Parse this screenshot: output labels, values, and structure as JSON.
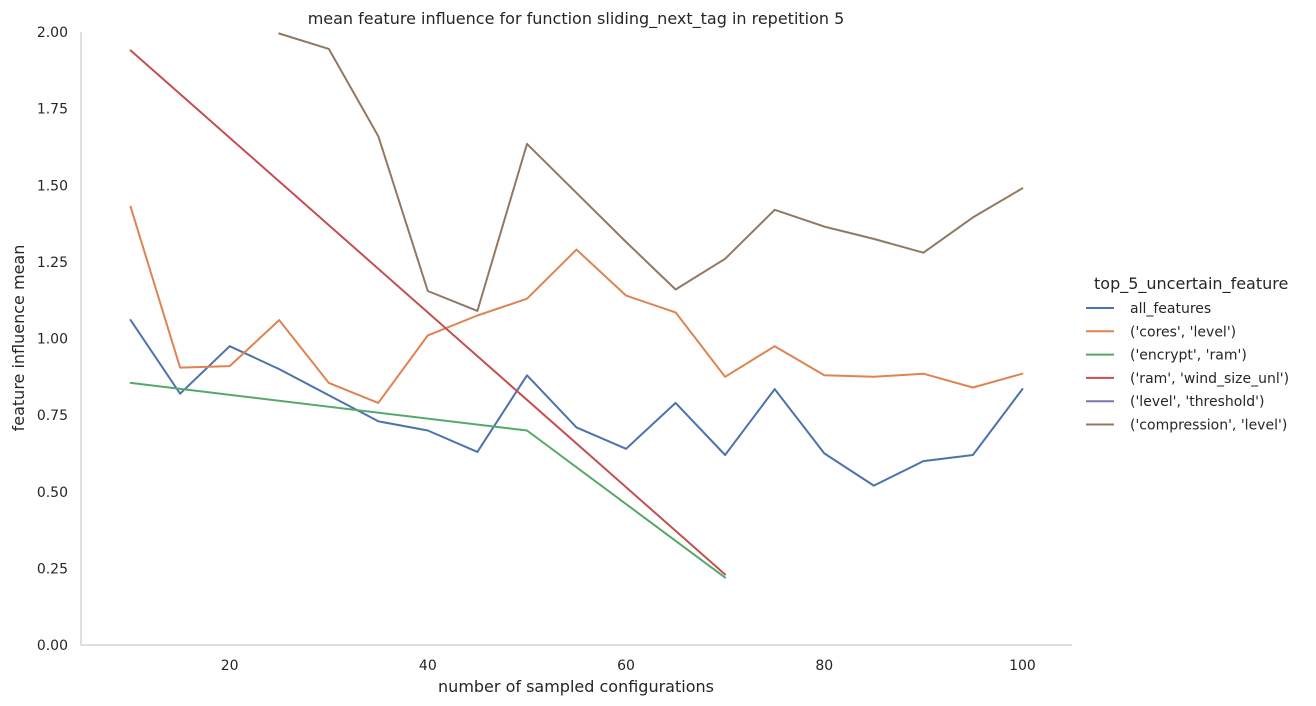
{
  "chart_data": {
    "type": "line",
    "title": "mean feature influence for function sliding_next_tag in repetition 5",
    "xlabel": "number of sampled configurations",
    "ylabel": "feature influence mean",
    "xlim": [
      5,
      105
    ],
    "ylim": [
      0,
      2.0
    ],
    "xticks": [
      20,
      40,
      60,
      80,
      100
    ],
    "yticks": [
      0.0,
      0.25,
      0.5,
      0.75,
      1.0,
      1.25,
      1.5,
      1.75,
      2.0
    ],
    "xtick_labels": [
      "20",
      "40",
      "60",
      "80",
      "100"
    ],
    "ytick_labels": [
      "0.00",
      "0.25",
      "0.50",
      "0.75",
      "1.00",
      "1.25",
      "1.50",
      "1.75",
      "2.00"
    ],
    "grid": false,
    "legend": {
      "title": "top_5_uncertain_feature",
      "placement": "outside-right"
    },
    "series": [
      {
        "name": "all_features",
        "color": "#4c72b0",
        "x": [
          10,
          15,
          20,
          25,
          30,
          35,
          40,
          45,
          50,
          55,
          60,
          65,
          70,
          75,
          80,
          85,
          90,
          95,
          100
        ],
        "y": [
          1.06,
          0.82,
          0.975,
          0.9,
          0.815,
          0.73,
          0.7,
          0.63,
          0.88,
          0.71,
          0.64,
          0.79,
          0.62,
          0.835,
          0.625,
          0.52,
          0.6,
          0.62,
          0.835
        ]
      },
      {
        "name": "('cores', 'level')",
        "color": "#dd8452",
        "x": [
          10,
          15,
          20,
          25,
          30,
          35,
          40,
          45,
          50,
          55,
          60,
          65,
          70,
          75,
          80,
          85,
          90,
          95,
          100
        ],
        "y": [
          1.43,
          0.905,
          0.91,
          1.06,
          0.855,
          0.79,
          1.01,
          1.075,
          1.13,
          1.29,
          1.14,
          1.085,
          0.875,
          0.975,
          0.88,
          0.875,
          0.885,
          0.84,
          0.885
        ]
      },
      {
        "name": "('encrypt', 'ram')",
        "color": "#55a868",
        "x": [
          10,
          50,
          70
        ],
        "y": [
          0.855,
          0.7,
          0.22
        ]
      },
      {
        "name": "('ram', 'wind_size_unl')",
        "color": "#c44e52",
        "x": [
          10,
          70
        ],
        "y": [
          1.94,
          0.23
        ]
      },
      {
        "name": "('level', 'threshold')",
        "color": "#8172b3",
        "x": [],
        "y": []
      },
      {
        "name": "('compression', 'level')",
        "color": "#937860",
        "x": [
          25,
          30,
          35,
          40,
          45,
          50,
          55,
          60,
          65,
          70,
          75,
          80,
          85,
          90,
          95,
          100
        ],
        "y": [
          1.995,
          1.945,
          1.66,
          1.155,
          1.09,
          1.635,
          1.475,
          1.315,
          1.16,
          1.26,
          1.42,
          1.365,
          1.325,
          1.28,
          1.395,
          1.49
        ]
      }
    ]
  }
}
